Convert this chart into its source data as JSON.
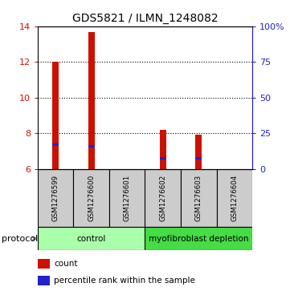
{
  "title": "GDS5821 / ILMN_1248082",
  "samples": [
    "GSM1276599",
    "GSM1276600",
    "GSM1276601",
    "GSM1276602",
    "GSM1276603",
    "GSM1276604"
  ],
  "count_values": [
    12.0,
    13.65,
    6.0,
    8.2,
    7.9,
    6.0
  ],
  "percentile_values": [
    7.35,
    7.25,
    6.0,
    6.58,
    6.6,
    6.0
  ],
  "ylim_left": [
    6,
    14
  ],
  "ylim_right": [
    0,
    100
  ],
  "yticks_left": [
    6,
    8,
    10,
    12,
    14
  ],
  "yticks_right": [
    0,
    25,
    50,
    75,
    100
  ],
  "ytick_labels_right": [
    "0",
    "25",
    "50",
    "75",
    "100%"
  ],
  "bar_color": "#cc1100",
  "percentile_color": "#2222cc",
  "protocol_groups": [
    {
      "label": "control",
      "start": 0,
      "end": 2,
      "color": "#aaffaa"
    },
    {
      "label": "myofibroblast depletion",
      "start": 3,
      "end": 5,
      "color": "#44dd44"
    }
  ],
  "legend_count_label": "count",
  "legend_percentile_label": "percentile rank within the sample",
  "bar_width": 0.18,
  "sample_box_color": "#cccccc",
  "protocol_label": "protocol"
}
